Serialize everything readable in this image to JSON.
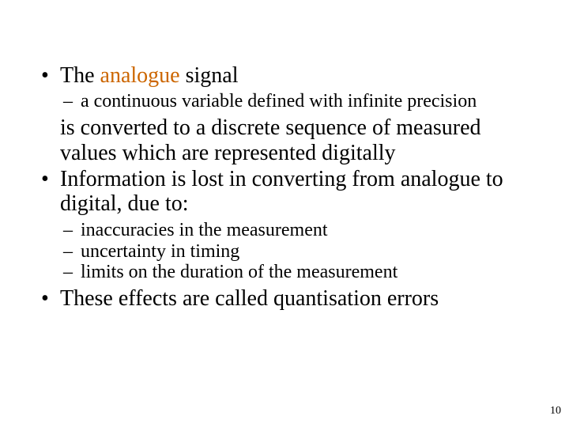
{
  "colors": {
    "text": "#000000",
    "accent": "#cc6600",
    "background": "#ffffff"
  },
  "fontsizes": {
    "bullet": 28,
    "subbullet": 24,
    "pagenum": 14
  },
  "bullets": [
    {
      "pre": "The ",
      "accent": "analogue",
      "post": " signal",
      "subs": [
        "a continuous variable defined with infinite precision"
      ],
      "cont": "is converted to a discrete sequence of measured values which are represented digitally"
    },
    {
      "text": "Information is lost in converting from analogue to digital, due to:",
      "subs": [
        "inaccuracies in the measurement",
        "uncertainty in timing",
        "limits on the duration of the measurement"
      ]
    },
    {
      "text": "These effects are called quantisation errors"
    }
  ],
  "pagenum": "10"
}
